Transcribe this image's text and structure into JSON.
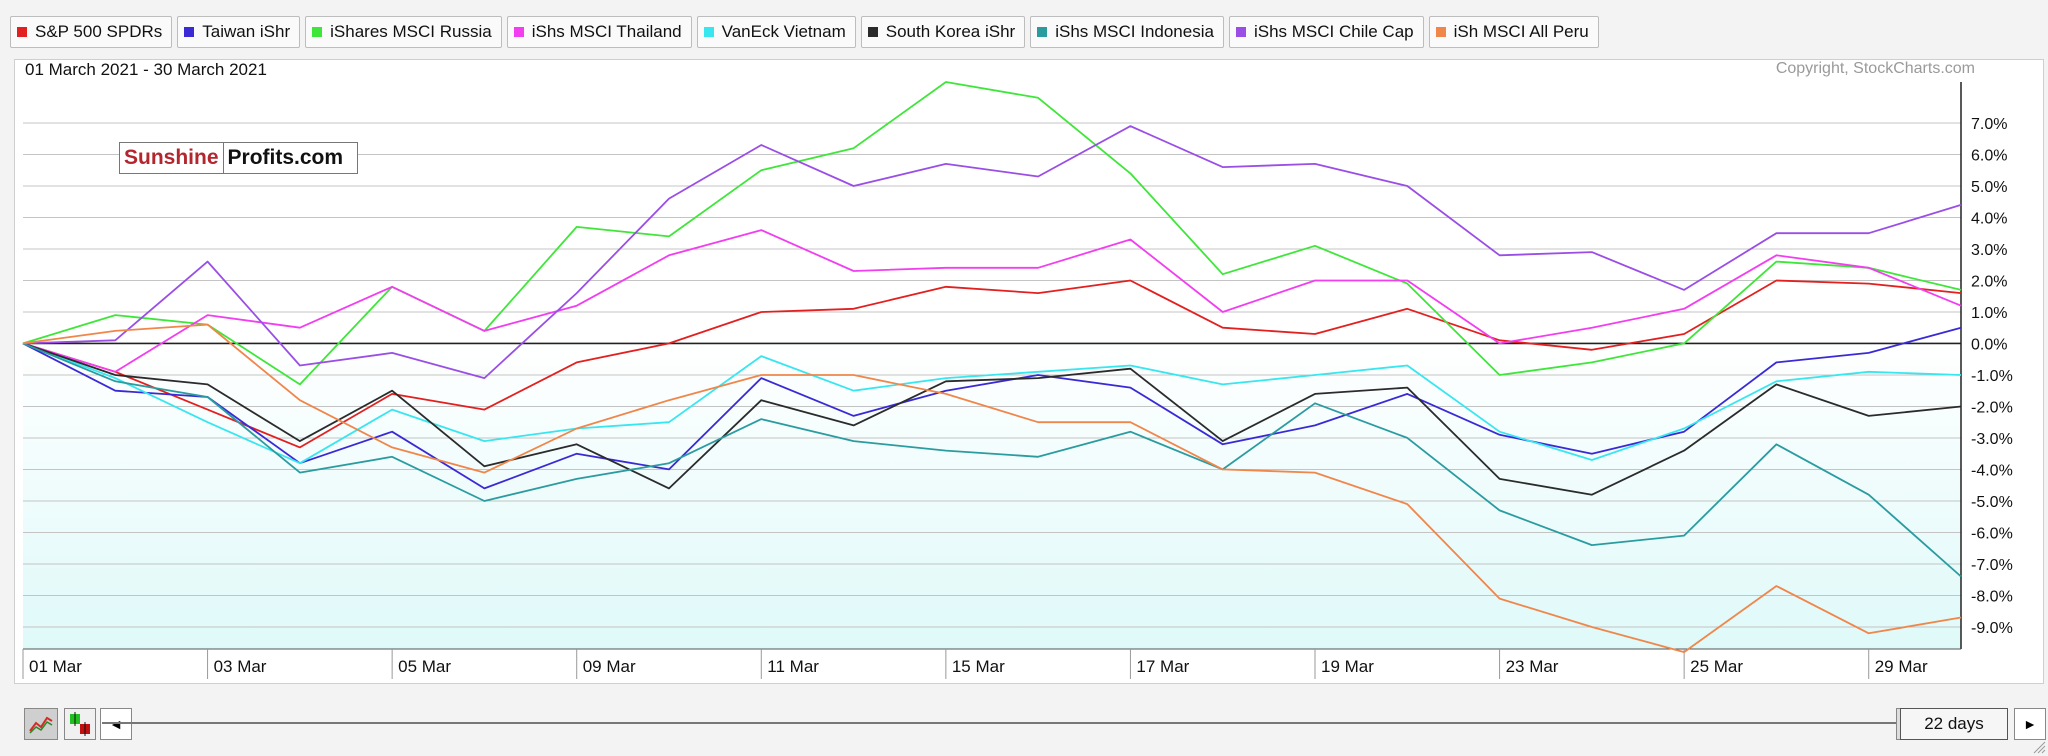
{
  "legend": [
    {
      "name": "S&P 500 SPDRs",
      "color": "#e32020"
    },
    {
      "name": "Taiwan iShr",
      "color": "#3a2ad6"
    },
    {
      "name": "iShares MSCI Russia",
      "color": "#3fe63a"
    },
    {
      "name": "iShs MSCI Thailand",
      "color": "#f23ef0"
    },
    {
      "name": "VanEck Vietnam",
      "color": "#38e6f0"
    },
    {
      "name": "South Korea iShr",
      "color": "#2b2b2b"
    },
    {
      "name": "iShs MSCI Indonesia",
      "color": "#2a9ca0"
    },
    {
      "name": "iShs MSCI Chile Cap",
      "color": "#9a4ee6"
    },
    {
      "name": "iSh MSCI All Peru",
      "color": "#f0864a"
    }
  ],
  "header": {
    "date_range": "01 March 2021 - 30 March 2021",
    "copyright": "Copyright, StockCharts.com"
  },
  "brand": {
    "part1": "Sunshine",
    "part2": "Profits.com"
  },
  "controls": {
    "left_arrow": "◄",
    "right_arrow": "►",
    "range_label": "22 days",
    "line_chart_icon": "line-chart-icon",
    "ohlc_icon": "ohlc-icon"
  },
  "chart_data": {
    "type": "line",
    "x": [
      "01 Mar",
      "02 Mar",
      "03 Mar",
      "04 Mar",
      "05 Mar",
      "08 Mar",
      "09 Mar",
      "10 Mar",
      "11 Mar",
      "12 Mar",
      "15 Mar",
      "16 Mar",
      "17 Mar",
      "18 Mar",
      "19 Mar",
      "22 Mar",
      "23 Mar",
      "24 Mar",
      "25 Mar",
      "26 Mar",
      "29 Mar",
      "30 Mar"
    ],
    "x_tick_labels": [
      "01 Mar",
      "03 Mar",
      "05 Mar",
      "09 Mar",
      "11 Mar",
      "15 Mar",
      "17 Mar",
      "19 Mar",
      "23 Mar",
      "25 Mar",
      "29 Mar"
    ],
    "y_ticks": [
      7,
      6,
      5,
      4,
      3,
      2,
      1,
      0,
      -1,
      -2,
      -3,
      -4,
      -5,
      -6,
      -7,
      -8,
      -9
    ],
    "y_tick_labels": [
      "7.0%",
      "6.0%",
      "5.0%",
      "4.0%",
      "3.0%",
      "2.0%",
      "1.0%",
      "0.0%",
      "-1.0%",
      "-2.0%",
      "-3.0%",
      "-4.0%",
      "-5.0%",
      "-6.0%",
      "-7.0%",
      "-8.0%",
      "-9.0%"
    ],
    "ylim": [
      -9.7,
      8.3
    ],
    "grid": true,
    "series": [
      {
        "name": "S&P 500 SPDRs",
        "values": [
          0,
          -0.9,
          -2.1,
          -3.3,
          -1.6,
          -2.1,
          -0.6,
          0.0,
          1.0,
          1.1,
          1.8,
          1.6,
          2.0,
          0.5,
          0.3,
          1.1,
          0.1,
          -0.2,
          0.3,
          2.0,
          1.9,
          1.6
        ]
      },
      {
        "name": "Taiwan iShr",
        "values": [
          0,
          -1.5,
          -1.7,
          -3.8,
          -2.8,
          -4.6,
          -3.5,
          -4.0,
          -1.1,
          -2.3,
          -1.5,
          -1.0,
          -1.4,
          -3.2,
          -2.6,
          -1.6,
          -2.9,
          -3.5,
          -2.8,
          -0.6,
          -0.3,
          0.5
        ]
      },
      {
        "name": "iShares MSCI Russia",
        "values": [
          0,
          0.9,
          0.6,
          -1.3,
          1.8,
          0.4,
          3.7,
          3.4,
          5.5,
          6.2,
          8.3,
          7.8,
          5.4,
          2.2,
          3.1,
          1.9,
          -1.0,
          -0.6,
          0.0,
          2.6,
          2.4,
          1.7
        ]
      },
      {
        "name": "iShs MSCI Thailand",
        "values": [
          0,
          -0.9,
          0.9,
          0.5,
          1.8,
          0.4,
          1.2,
          2.8,
          3.6,
          2.3,
          2.4,
          2.4,
          3.3,
          1.0,
          2.0,
          2.0,
          0.0,
          0.5,
          1.1,
          2.8,
          2.4,
          1.2
        ]
      },
      {
        "name": "VanEck Vietnam",
        "values": [
          0,
          -1.1,
          -2.5,
          -3.8,
          -2.1,
          -3.1,
          -2.7,
          -2.5,
          -0.4,
          -1.5,
          -1.1,
          -0.9,
          -0.7,
          -1.3,
          -1.0,
          -0.7,
          -2.8,
          -3.7,
          -2.7,
          -1.2,
          -0.9,
          -1.0
        ]
      },
      {
        "name": "South Korea iShr",
        "values": [
          0,
          -1.0,
          -1.3,
          -3.1,
          -1.5,
          -3.9,
          -3.2,
          -4.6,
          -1.8,
          -2.6,
          -1.2,
          -1.1,
          -0.8,
          -3.1,
          -1.6,
          -1.4,
          -4.3,
          -4.8,
          -3.4,
          -1.3,
          -2.3,
          -2.0
        ]
      },
      {
        "name": "iShs MSCI Indonesia",
        "values": [
          0,
          -1.2,
          -1.7,
          -4.1,
          -3.6,
          -5.0,
          -4.3,
          -3.8,
          -2.4,
          -3.1,
          -3.4,
          -3.6,
          -2.8,
          -4.0,
          -1.9,
          -3.0,
          -5.3,
          -6.4,
          -6.1,
          -3.2,
          -4.8,
          -7.4
        ]
      },
      {
        "name": "iShs MSCI Chile Cap",
        "values": [
          0,
          0.1,
          2.6,
          -0.7,
          -0.3,
          -1.1,
          1.6,
          4.6,
          6.3,
          5.0,
          5.7,
          5.3,
          6.9,
          5.6,
          5.7,
          5.0,
          2.8,
          2.9,
          1.7,
          3.5,
          3.5,
          4.4
        ]
      },
      {
        "name": "iSh MSCI All Peru",
        "values": [
          0,
          0.4,
          0.6,
          -1.8,
          -3.3,
          -4.1,
          -2.7,
          -1.8,
          -1.0,
          -1.0,
          -1.6,
          -2.5,
          -2.5,
          -4.0,
          -4.1,
          -5.1,
          -8.1,
          -9.0,
          -9.8,
          -7.7,
          -9.2,
          -8.7
        ]
      }
    ]
  }
}
